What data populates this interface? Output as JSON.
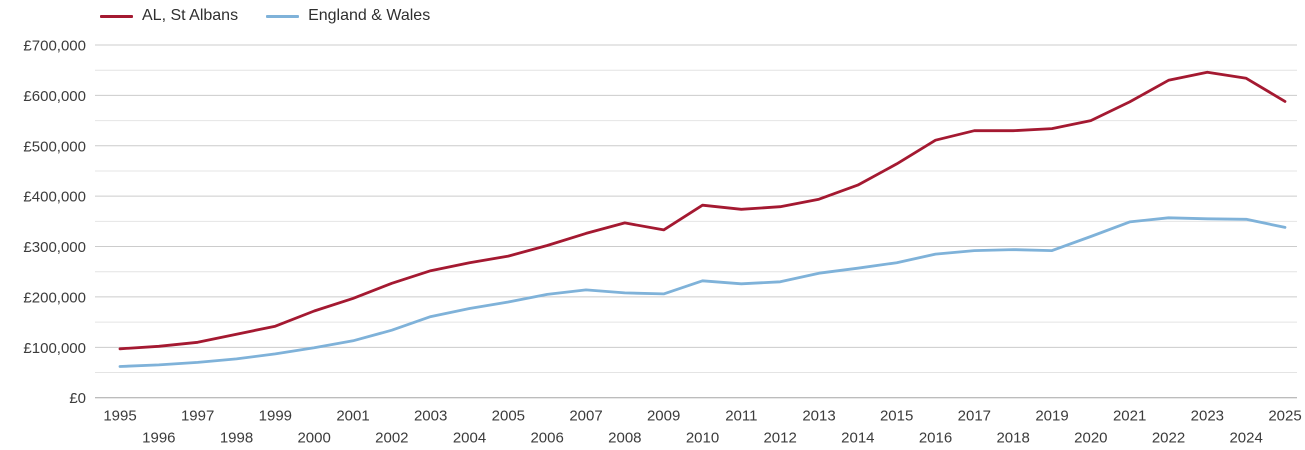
{
  "chart_data": {
    "type": "line",
    "title": "",
    "xlabel": "",
    "ylabel": "",
    "x": [
      1995,
      1996,
      1997,
      1998,
      1999,
      2000,
      2001,
      2002,
      2003,
      2004,
      2005,
      2006,
      2007,
      2008,
      2009,
      2010,
      2011,
      2012,
      2013,
      2014,
      2015,
      2016,
      2017,
      2018,
      2019,
      2020,
      2021,
      2022,
      2023,
      2024,
      2025
    ],
    "series": [
      {
        "name": "AL, St Albans",
        "color": "#a41931",
        "values": [
          97000,
          102000,
          110000,
          126000,
          142000,
          172000,
          197000,
          227000,
          252000,
          268000,
          281000,
          302000,
          326000,
          347000,
          333000,
          382000,
          374000,
          379000,
          394000,
          422000,
          464000,
          511000,
          530000,
          530000,
          534000,
          550000,
          587000,
          630000,
          646000,
          634000,
          588000
        ]
      },
      {
        "name": "England & Wales",
        "color": "#7fb2d9",
        "values": [
          62000,
          65000,
          70000,
          77000,
          87000,
          99000,
          113000,
          134000,
          161000,
          177000,
          190000,
          205000,
          214000,
          208000,
          206000,
          232000,
          226000,
          230000,
          247000,
          257000,
          268000,
          285000,
          292000,
          294000,
          292000,
          320000,
          349000,
          357000,
          355000,
          354000,
          338000
        ]
      }
    ],
    "ylim": [
      0,
      700000
    ],
    "ytick_values": [
      0,
      100000,
      200000,
      300000,
      400000,
      500000,
      600000,
      700000
    ],
    "ytick_labels": [
      "£0",
      "£100,000",
      "£200,000",
      "£300,000",
      "£400,000",
      "£500,000",
      "£600,000",
      "£700,000"
    ],
    "minor_gridline_step": 50000,
    "grid": true,
    "legend_position": "top-left",
    "currency": "£"
  },
  "colors": {
    "background": "#ffffff",
    "major_gridline": "#cccccc",
    "minor_gridline": "#e4e4e4",
    "zero_axis_line": "#a6a6a6",
    "axis_text": "#3c3c3c",
    "legend_text": "#2f2f2f"
  }
}
